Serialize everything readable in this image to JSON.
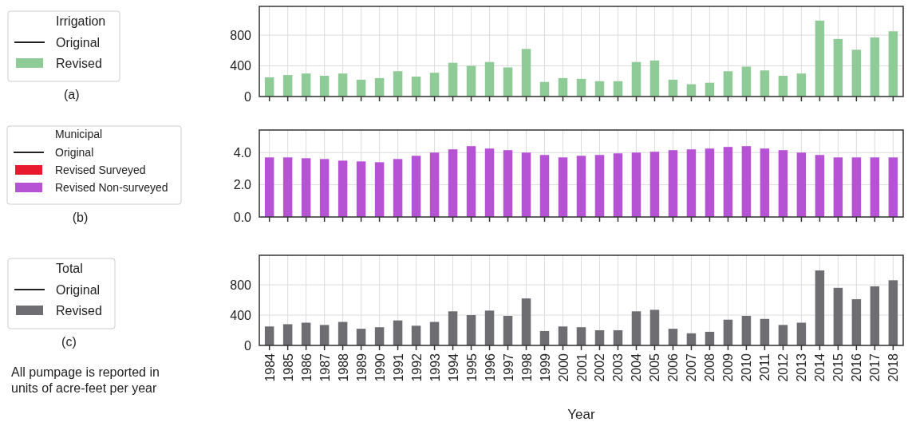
{
  "chart_data": [
    {
      "type": "bar",
      "legend_title": "Irrigation",
      "annotations": [
        "(a)"
      ],
      "categories": [
        "1984",
        "1985",
        "1986",
        "1987",
        "1988",
        "1989",
        "1990",
        "1991",
        "1992",
        "1993",
        "1994",
        "1995",
        "1996",
        "1997",
        "1998",
        "1999",
        "2000",
        "2001",
        "2002",
        "2003",
        "2004",
        "2005",
        "2006",
        "2007",
        "2008",
        "2009",
        "2010",
        "2011",
        "2012",
        "2013",
        "2014",
        "2015",
        "2016",
        "2017",
        "2018"
      ],
      "series": [
        {
          "name": "Original",
          "type": "line",
          "color": "#222222",
          "values": [
            null,
            null,
            null,
            null,
            null,
            null,
            null,
            null,
            null,
            null,
            null,
            null,
            null,
            null,
            null,
            null,
            null,
            null,
            null,
            null,
            null,
            null,
            null,
            null,
            null,
            null,
            null,
            null,
            null,
            null,
            null,
            null,
            null,
            null,
            null
          ]
        },
        {
          "name": "Revised",
          "type": "bar",
          "color": "#8fcb97",
          "values": [
            250,
            280,
            300,
            270,
            300,
            220,
            240,
            330,
            260,
            310,
            440,
            400,
            450,
            380,
            620,
            190,
            240,
            230,
            200,
            200,
            450,
            470,
            220,
            160,
            180,
            330,
            390,
            340,
            270,
            300,
            990,
            750,
            610,
            770,
            850
          ]
        }
      ],
      "ylim": [
        0,
        1175
      ],
      "yticks": [
        0,
        400,
        800
      ],
      "grid": true,
      "legend": "left",
      "tick_labels": "y"
    },
    {
      "type": "bar",
      "legend_title": "Municipal",
      "annotations": [
        "(b)"
      ],
      "categories": [
        "1984",
        "1985",
        "1986",
        "1987",
        "1988",
        "1989",
        "1990",
        "1991",
        "1992",
        "1993",
        "1994",
        "1995",
        "1996",
        "1997",
        "1998",
        "1999",
        "2000",
        "2001",
        "2002",
        "2003",
        "2004",
        "2005",
        "2006",
        "2007",
        "2008",
        "2009",
        "2010",
        "2011",
        "2012",
        "2013",
        "2014",
        "2015",
        "2016",
        "2017",
        "2018"
      ],
      "series": [
        {
          "name": "Original",
          "type": "line",
          "color": "#222222",
          "values": [
            null,
            null,
            null,
            null,
            null,
            null,
            null,
            null,
            null,
            null,
            null,
            null,
            null,
            null,
            null,
            null,
            null,
            null,
            null,
            null,
            null,
            null,
            null,
            null,
            null,
            null,
            null,
            null,
            null,
            null,
            null,
            null,
            null,
            null,
            null
          ]
        },
        {
          "name": "Revised Surveyed",
          "type": "bar",
          "color": "#e8192c",
          "values": [
            null,
            null,
            null,
            null,
            null,
            null,
            null,
            null,
            null,
            null,
            null,
            null,
            null,
            null,
            null,
            null,
            null,
            null,
            null,
            null,
            null,
            null,
            null,
            null,
            null,
            null,
            null,
            null,
            null,
            null,
            null,
            null,
            null,
            null,
            null
          ]
        },
        {
          "name": "Revised Non-surveyed",
          "type": "bar",
          "color": "#b553d4",
          "values": [
            3.7,
            3.7,
            3.65,
            3.6,
            3.5,
            3.45,
            3.4,
            3.6,
            3.8,
            4.0,
            4.2,
            4.4,
            4.25,
            4.15,
            4.0,
            3.85,
            3.7,
            3.8,
            3.85,
            3.95,
            4.0,
            4.05,
            4.15,
            4.2,
            4.25,
            4.35,
            4.4,
            4.25,
            4.15,
            4.0,
            3.85,
            3.7,
            3.7,
            3.7,
            3.7
          ]
        }
      ],
      "ylim": [
        0,
        5.4
      ],
      "yticks": [
        {
          "value": 0,
          "label": "0.0"
        },
        {
          "value": 2,
          "label": "2.0"
        },
        {
          "value": 4,
          "label": "4.0"
        }
      ],
      "grid": true,
      "legend": "left",
      "tick_labels": "y"
    },
    {
      "type": "bar",
      "legend_title": "Total",
      "xlabel": "Year",
      "annotations": [
        "(c)",
        "All pumpage is reported in units of acre-feet per year"
      ],
      "categories": [
        "1984",
        "1985",
        "1986",
        "1987",
        "1988",
        "1989",
        "1990",
        "1991",
        "1992",
        "1993",
        "1994",
        "1995",
        "1996",
        "1997",
        "1998",
        "1999",
        "2000",
        "2001",
        "2002",
        "2003",
        "2004",
        "2005",
        "2006",
        "2007",
        "2008",
        "2009",
        "2010",
        "2011",
        "2012",
        "2013",
        "2014",
        "2015",
        "2016",
        "2017",
        "2018"
      ],
      "series": [
        {
          "name": "Original",
          "type": "line",
          "color": "#222222",
          "values": [
            null,
            null,
            null,
            null,
            null,
            null,
            null,
            null,
            null,
            null,
            null,
            null,
            null,
            null,
            null,
            null,
            null,
            null,
            null,
            null,
            null,
            null,
            null,
            null,
            null,
            null,
            null,
            null,
            null,
            null,
            null,
            null,
            null,
            null,
            null
          ]
        },
        {
          "name": "Revised",
          "type": "bar",
          "color": "#6e6e72",
          "values": [
            250,
            280,
            300,
            270,
            310,
            220,
            240,
            330,
            260,
            310,
            450,
            400,
            460,
            390,
            620,
            190,
            250,
            240,
            200,
            200,
            450,
            470,
            220,
            160,
            180,
            340,
            390,
            350,
            270,
            300,
            990,
            760,
            610,
            780,
            860
          ]
        }
      ],
      "ylim": [
        0,
        1190
      ],
      "yticks": [
        0,
        400,
        800
      ],
      "grid": true,
      "legend": "left"
    }
  ]
}
